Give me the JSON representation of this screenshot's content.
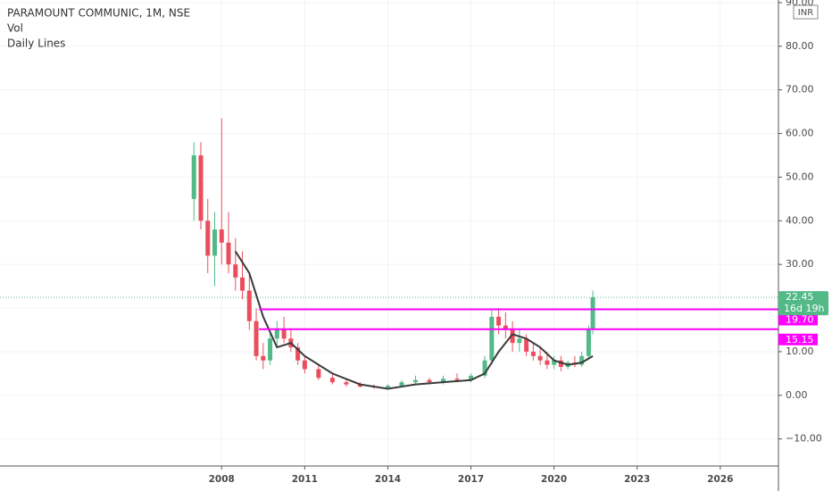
{
  "chart_data": {
    "type": "candlestick",
    "title": "PARAMOUNT COMMUNIC, 1M, NSE",
    "indicators": [
      "Vol",
      "Daily Lines"
    ],
    "currency": "INR",
    "xlim": [
      2000,
      2028.1
    ],
    "xticks": [
      2008,
      2011,
      2014,
      2017,
      2020,
      2023,
      2026
    ],
    "ylim": [
      -16.2,
      90.6
    ],
    "yticks": [
      {
        "value": -10,
        "label": "−10.00"
      },
      {
        "value": 0,
        "label": "0.00"
      },
      {
        "value": 10,
        "label": "10.00"
      },
      {
        "value": 20,
        "label": "20.00"
      },
      {
        "value": 30,
        "label": "30.00"
      },
      {
        "value": 40,
        "label": "40.00"
      },
      {
        "value": 50,
        "label": "50.00"
      },
      {
        "value": 60,
        "label": "60.00"
      },
      {
        "value": 70,
        "label": "70.00"
      },
      {
        "value": 80,
        "label": "80.00"
      },
      {
        "value": 90,
        "label": "90.00"
      }
    ],
    "grid": true,
    "up_color": "#53b987",
    "down_color": "#eb4d5c",
    "candles": {
      "x": [
        2007.0,
        2007.25,
        2007.5,
        2007.75,
        2008.0,
        2008.25,
        2008.5,
        2008.75,
        2009.0,
        2009.25,
        2009.5,
        2009.75,
        2010.0,
        2010.25,
        2010.5,
        2010.75,
        2011.0,
        2011.5,
        2012.0,
        2012.5,
        2013.0,
        2013.5,
        2014.0,
        2014.5,
        2015.0,
        2015.5,
        2016.0,
        2016.5,
        2017.0,
        2017.5,
        2017.75,
        2018.0,
        2018.25,
        2018.5,
        2018.75,
        2019.0,
        2019.25,
        2019.5,
        2019.75,
        2020.0,
        2020.25,
        2020.5,
        2020.75,
        2021.0,
        2021.25,
        2021.4
      ],
      "open": [
        45,
        55,
        40,
        32,
        38,
        35,
        30,
        27,
        24,
        17,
        9,
        8,
        13,
        15,
        13,
        11,
        8,
        6,
        4,
        3,
        2.5,
        2,
        1.8,
        2.2,
        3,
        3.5,
        3,
        3.8,
        3.5,
        4.5,
        8,
        18,
        16,
        15,
        12,
        13,
        10,
        9,
        8,
        7,
        8,
        6.5,
        7.5,
        7,
        9,
        15
      ],
      "high": [
        58,
        58,
        45,
        42,
        63.5,
        42,
        36,
        33,
        28,
        20,
        12,
        14,
        17,
        18,
        15,
        12,
        9,
        7,
        5,
        3.5,
        3,
        2.5,
        2.5,
        3.5,
        4.5,
        4,
        4.5,
        5,
        5,
        9,
        19.7,
        20,
        19,
        17,
        15,
        14,
        12,
        11,
        10,
        9,
        9,
        8,
        9,
        10,
        16,
        24
      ],
      "low": [
        40,
        38,
        28,
        25,
        30,
        28,
        24,
        22,
        15,
        8,
        6,
        7,
        11,
        12,
        10,
        7,
        5,
        3.5,
        2.5,
        2,
        1.8,
        1.5,
        1.5,
        2,
        2.5,
        2.5,
        2.5,
        3,
        3,
        4,
        7,
        14,
        13,
        10,
        10,
        9,
        8,
        7,
        6,
        6,
        5.5,
        6,
        6.5,
        6.5,
        8.5,
        14
      ],
      "close": [
        55,
        40,
        32,
        38,
        35,
        30,
        27,
        24,
        17,
        9,
        8,
        13,
        15,
        13,
        11,
        8,
        6,
        4,
        3,
        2.5,
        2,
        1.8,
        2.2,
        3,
        3.5,
        3,
        3.8,
        3.5,
        4.5,
        8,
        18,
        16,
        15,
        12,
        13,
        10,
        9,
        8,
        7,
        8,
        6.5,
        7.5,
        7,
        9,
        15,
        22.45
      ]
    },
    "moving_average": {
      "color": "#3a3a3a",
      "x": [
        2008.5,
        2009.0,
        2009.5,
        2010.0,
        2010.5,
        2011.0,
        2012.0,
        2013.0,
        2014.0,
        2015.0,
        2016.0,
        2017.0,
        2017.5,
        2018.0,
        2018.5,
        2019.0,
        2019.5,
        2020.0,
        2020.5,
        2021.0,
        2021.4
      ],
      "values": [
        33,
        28,
        18,
        11,
        12,
        9,
        5,
        2.5,
        1.5,
        2.5,
        3,
        3.5,
        5,
        10,
        14,
        13,
        11,
        8,
        7,
        7.5,
        9
      ]
    },
    "levels": {
      "color": "#ff00ff",
      "from": [
        2009.35,
        2009.35
      ],
      "values": [
        {
          "value": 19.7,
          "label": "19.70"
        },
        {
          "value": 15.15,
          "label": "15.15"
        }
      ]
    },
    "last_price": {
      "value": 22.45,
      "countdown": "16d 19h",
      "color": "#53b987"
    }
  }
}
